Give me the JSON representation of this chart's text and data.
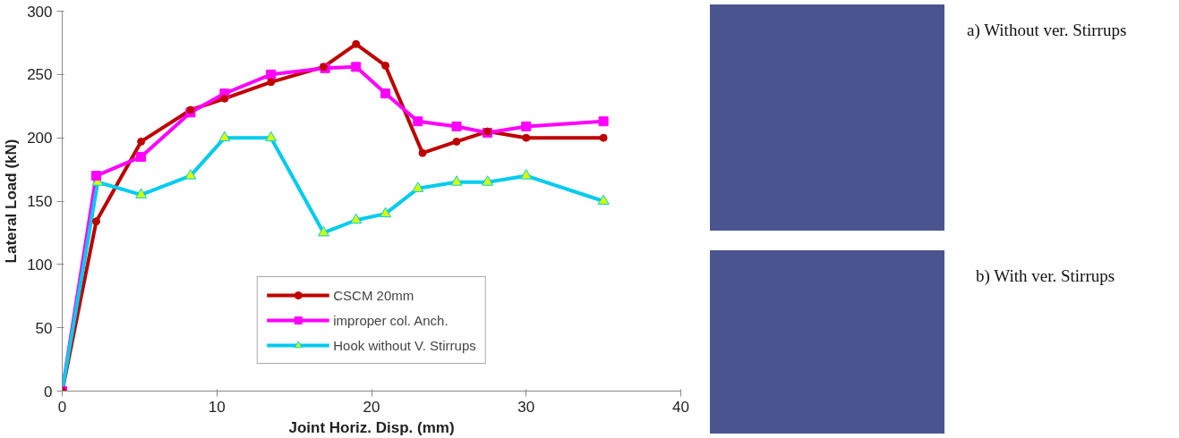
{
  "chart_data": {
    "type": "line",
    "xlabel": "Joint Horiz. Disp. (mm)",
    "ylabel": "Lateral Load (kN)",
    "xlim": [
      0,
      40
    ],
    "xticks": [
      0,
      10,
      20,
      30,
      40
    ],
    "ylim": [
      0,
      300
    ],
    "yticks": [
      0,
      50,
      100,
      150,
      200,
      250,
      300
    ],
    "grid": false,
    "legend": "bottom",
    "line_style": "solid",
    "series": [
      {
        "name": "CSCM 20mm",
        "color": "#c00000",
        "marker": "circle",
        "x": [
          0,
          2.2,
          5.1,
          8.3,
          10.5,
          13.5,
          16.9,
          19,
          20.9,
          23.3,
          25.5,
          27.5,
          30,
          35
        ],
        "values": [
          0,
          134,
          197,
          222,
          231,
          244,
          256,
          274,
          257,
          188,
          197,
          205,
          200,
          200
        ]
      },
      {
        "name": "improper col. Anch.",
        "color": "#ff00ff",
        "marker": "square",
        "x": [
          0,
          2.2,
          5.1,
          8.3,
          10.5,
          13.5,
          17,
          19,
          20.9,
          23,
          25.5,
          27.5,
          30,
          35
        ],
        "values": [
          0,
          170,
          185,
          220,
          235,
          250,
          255,
          256,
          235,
          213,
          209,
          204,
          209,
          213
        ]
      },
      {
        "name": "Hook without V. Stirrups",
        "color": "#00ccee",
        "marker": "triangle",
        "x": [
          0,
          2.3,
          5.1,
          8.3,
          10.5,
          13.5,
          16.9,
          19,
          20.9,
          23,
          25.5,
          27.5,
          30,
          35
        ],
        "values": [
          0,
          165,
          155,
          170,
          200,
          200,
          125,
          135,
          140,
          160,
          165,
          165,
          170,
          150
        ]
      }
    ],
    "annotations": [
      "a) Without ver. Stirrups",
      "b) With ver. Stirrups"
    ]
  }
}
